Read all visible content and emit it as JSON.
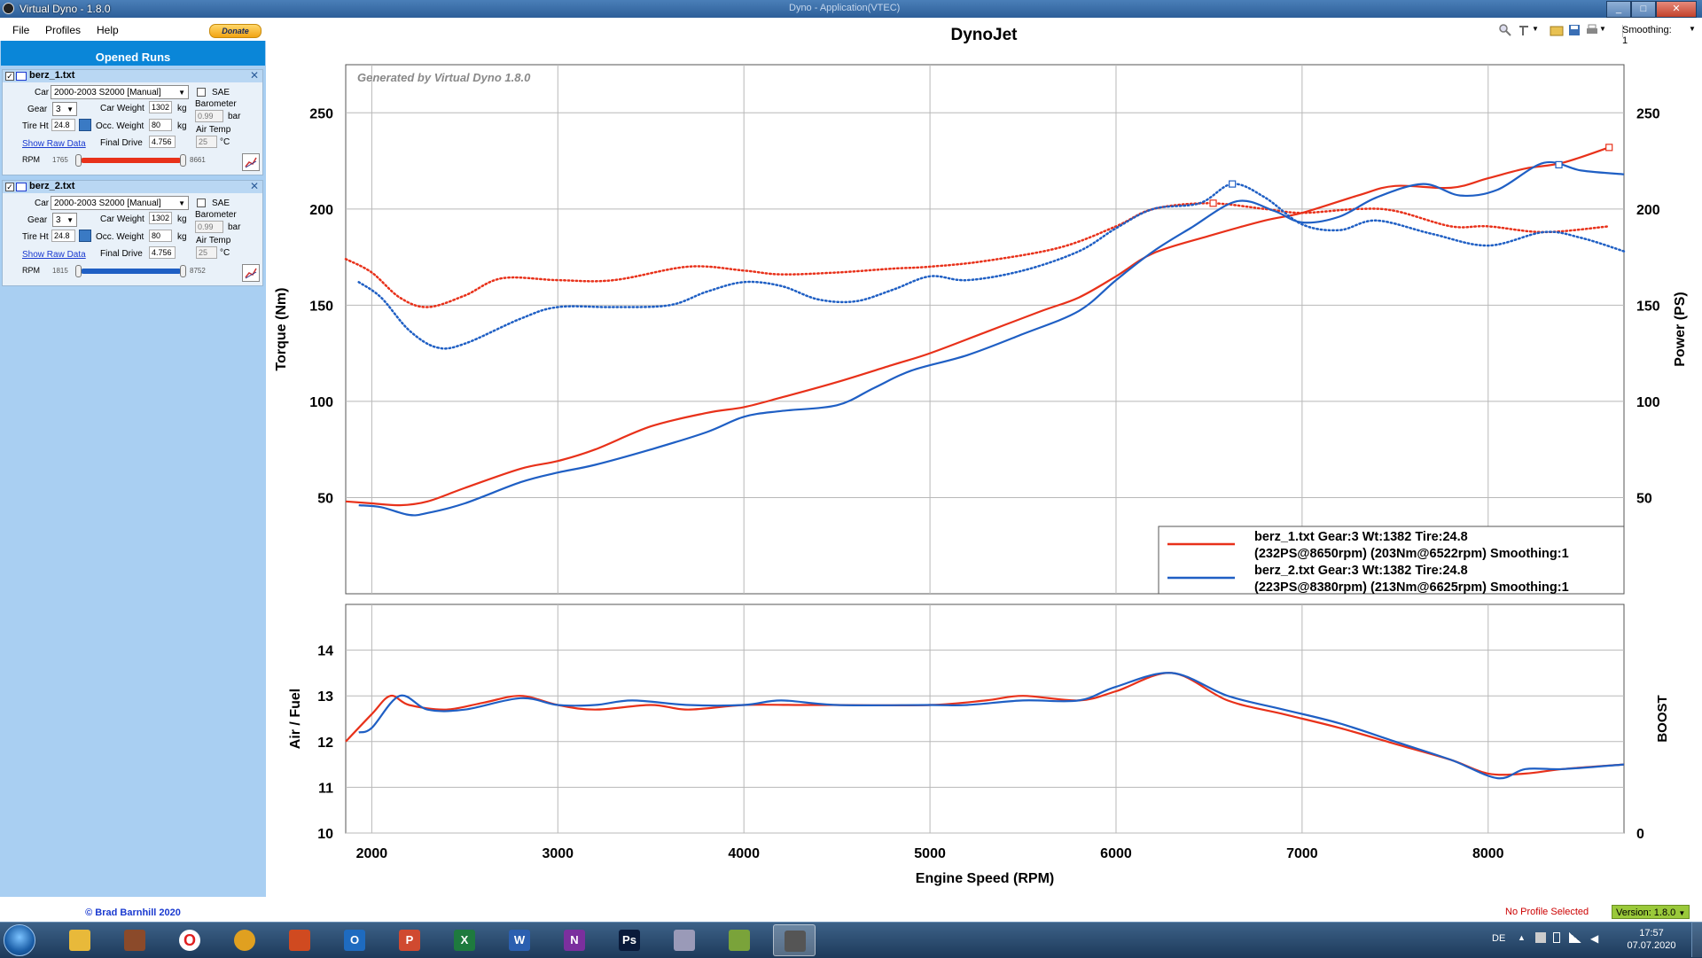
{
  "window": {
    "title": "Virtual Dyno - 1.8.0",
    "center_title": "Dyno - Application(VTEC)",
    "buttons": [
      "_",
      "□",
      "✕"
    ]
  },
  "menu": {
    "file": "File",
    "profiles": "Profiles",
    "help": "Help",
    "donate": "Donate"
  },
  "sidebar": {
    "header": "Opened Runs",
    "labels": {
      "car": "Car",
      "gear": "Gear",
      "tire": "Tire Ht",
      "car_weight": "Car Weight",
      "kg": "kg",
      "occ_weight": "Occ. Weight",
      "final_drive": "Final Drive",
      "sae": "SAE",
      "barometer": "Barometer",
      "bar": "bar",
      "air_temp": "Air Temp",
      "deg_c": "°C",
      "show_raw": "Show Raw Data",
      "rpm": "RPM"
    },
    "runs": [
      {
        "name": "berz_1.txt",
        "car": "2000-2003 S2000  [Manual]",
        "gear": "3",
        "tire": "24.8",
        "car_weight": "1302",
        "occ_weight": "80",
        "final_drive": "4.756",
        "barometer": "0.99",
        "air_temp": "25",
        "rpm_min": "1765",
        "rpm_max": "8661",
        "color": "#e8311a"
      },
      {
        "name": "berz_2.txt",
        "car": "2000-2003 S2000  [Manual]",
        "gear": "3",
        "tire": "24.8",
        "car_weight": "1302",
        "occ_weight": "80",
        "final_drive": "4.756",
        "barometer": "0.99",
        "air_temp": "25",
        "rpm_min": "1815",
        "rpm_max": "8752",
        "color": "#1f5fc4"
      }
    ],
    "copyright": "© Brad Barnhill 2020"
  },
  "toolbar": {
    "smoothing": "Smoothing: 1"
  },
  "status": {
    "profile": "No Profile Selected",
    "version": "Version: 1.8.0"
  },
  "taskbar": {
    "apps": [
      "Explorer",
      "WinRAR",
      "Opera",
      "Chrome",
      "Paint",
      "Outlook",
      "PowerPoint",
      "Excel",
      "Word",
      "OneNote",
      "Photoshop",
      "Snipping",
      "Notepad",
      "Virtual Dyno"
    ],
    "lang": "DE",
    "time": "17:57",
    "date": "07.07.2020"
  },
  "chart_data": [
    {
      "type": "line",
      "title": "DynoJet",
      "watermark": "Generated by Virtual Dyno 1.8.0",
      "ylabel": "Torque (Nm)",
      "y2label": "Power (PS)",
      "xlim": [
        1860,
        8730
      ],
      "ylim": [
        0,
        275
      ],
      "yticks": [
        50,
        100,
        150,
        200,
        250
      ],
      "grid": true,
      "legend_position": "bottom-right",
      "legend": [
        {
          "line1": "berz_1.txt Gear:3 Wt:1382 Tire:24.8",
          "line2": "(232PS@8650rpm) (203Nm@6522rpm) Smoothing:1",
          "color": "#e8311a"
        },
        {
          "line1": "berz_2.txt Gear:3 Wt:1382 Tire:24.8",
          "line2": "(223PS@8380rpm) (213Nm@6625rpm) Smoothing:1",
          "color": "#1f5fc4"
        }
      ],
      "series": [
        {
          "name": "berz_1.txt Power (PS)",
          "style": "solid",
          "color": "#e8311a",
          "x": [
            1860,
            2000,
            2150,
            2300,
            2500,
            2800,
            3000,
            3200,
            3500,
            3800,
            4000,
            4200,
            4500,
            4800,
            5000,
            5300,
            5600,
            5800,
            6000,
            6200,
            6500,
            6800,
            7000,
            7300,
            7500,
            7800,
            8000,
            8200,
            8400,
            8650
          ],
          "y": [
            48,
            47,
            46,
            48,
            55,
            65,
            69,
            75,
            87,
            94,
            97,
            102,
            110,
            119,
            125,
            136,
            147,
            154,
            165,
            177,
            186,
            194,
            198,
            207,
            212,
            211,
            216,
            221,
            224,
            232
          ]
        },
        {
          "name": "berz_1.txt Torque (Nm)",
          "style": "dotted",
          "color": "#e8311a",
          "x": [
            1860,
            2000,
            2150,
            2300,
            2500,
            2700,
            3000,
            3300,
            3700,
            4000,
            4200,
            4500,
            4800,
            5000,
            5300,
            5700,
            6000,
            6200,
            6500,
            6800,
            7000,
            7300,
            7500,
            7800,
            8000,
            8300,
            8650
          ],
          "y": [
            174,
            167,
            154,
            149,
            155,
            164,
            163,
            163,
            170,
            168,
            166,
            167,
            169,
            170,
            173,
            180,
            191,
            200,
            203,
            200,
            198,
            200,
            199,
            191,
            191,
            188,
            191
          ]
        },
        {
          "name": "berz_2.txt Power (PS)",
          "style": "solid",
          "color": "#1f5fc4",
          "x": [
            1930,
            2050,
            2200,
            2300,
            2500,
            2800,
            3000,
            3200,
            3500,
            3800,
            4000,
            4200,
            4500,
            4700,
            4900,
            5200,
            5500,
            5800,
            6000,
            6200,
            6400,
            6650,
            6850,
            7000,
            7200,
            7400,
            7650,
            7850,
            8050,
            8300,
            8500,
            8730
          ],
          "y": [
            46,
            45,
            41,
            42,
            47,
            58,
            63,
            67,
            75,
            84,
            92,
            95,
            98,
            107,
            116,
            124,
            135,
            147,
            163,
            178,
            190,
            204,
            199,
            193,
            196,
            206,
            213,
            207,
            210,
            224,
            220,
            218
          ]
        },
        {
          "name": "berz_2.txt Torque (Nm)",
          "style": "dotted",
          "color": "#1f5fc4",
          "x": [
            1930,
            2050,
            2200,
            2350,
            2500,
            2800,
            3000,
            3300,
            3600,
            3800,
            4000,
            4200,
            4400,
            4600,
            4800,
            5000,
            5200,
            5500,
            5800,
            6000,
            6200,
            6450,
            6625,
            6800,
            7000,
            7200,
            7400,
            7700,
            8000,
            8300,
            8500,
            8730
          ],
          "y": [
            162,
            154,
            137,
            128,
            130,
            143,
            149,
            149,
            150,
            157,
            162,
            160,
            153,
            152,
            158,
            165,
            163,
            168,
            178,
            190,
            200,
            203,
            213,
            206,
            192,
            189,
            194,
            187,
            181,
            188,
            185,
            178
          ]
        }
      ]
    },
    {
      "type": "line",
      "xlabel": "Engine Speed (RPM)",
      "ylabel": "Air / Fuel",
      "y2label": "BOOST",
      "xlim": [
        1860,
        8730
      ],
      "ylim": [
        10,
        15
      ],
      "yticks": [
        10,
        11,
        12,
        13,
        14
      ],
      "y2ticks": [
        0
      ],
      "xticks": [
        2000,
        3000,
        4000,
        5000,
        6000,
        7000,
        8000
      ],
      "grid": true,
      "series": [
        {
          "name": "berz_1.txt AFR",
          "color": "#e8311a",
          "x": [
            1860,
            2000,
            2100,
            2200,
            2400,
            2600,
            2800,
            3000,
            3200,
            3500,
            3700,
            4000,
            4300,
            4500,
            5000,
            5300,
            5500,
            5800,
            6000,
            6300,
            6600,
            6900,
            7200,
            7500,
            7800,
            8000,
            8200,
            8400,
            8730
          ],
          "y": [
            12.0,
            12.6,
            13.0,
            12.8,
            12.7,
            12.85,
            13.0,
            12.8,
            12.7,
            12.8,
            12.7,
            12.8,
            12.8,
            12.8,
            12.8,
            12.9,
            13.0,
            12.9,
            13.1,
            13.5,
            12.9,
            12.6,
            12.3,
            11.95,
            11.6,
            11.3,
            11.3,
            11.4,
            11.5
          ]
        },
        {
          "name": "berz_2.txt AFR",
          "color": "#1f5fc4",
          "x": [
            1930,
            2000,
            2150,
            2300,
            2500,
            2800,
            3000,
            3200,
            3400,
            3700,
            4000,
            4200,
            4500,
            5000,
            5200,
            5500,
            5800,
            6000,
            6300,
            6600,
            6900,
            7200,
            7500,
            7800,
            8050,
            8200,
            8400,
            8730
          ],
          "y": [
            12.2,
            12.3,
            13.0,
            12.7,
            12.7,
            12.95,
            12.8,
            12.8,
            12.9,
            12.8,
            12.8,
            12.9,
            12.8,
            12.8,
            12.8,
            12.9,
            12.9,
            13.2,
            13.5,
            13.0,
            12.7,
            12.4,
            12.0,
            11.6,
            11.2,
            11.4,
            11.4,
            11.5
          ]
        }
      ]
    }
  ]
}
